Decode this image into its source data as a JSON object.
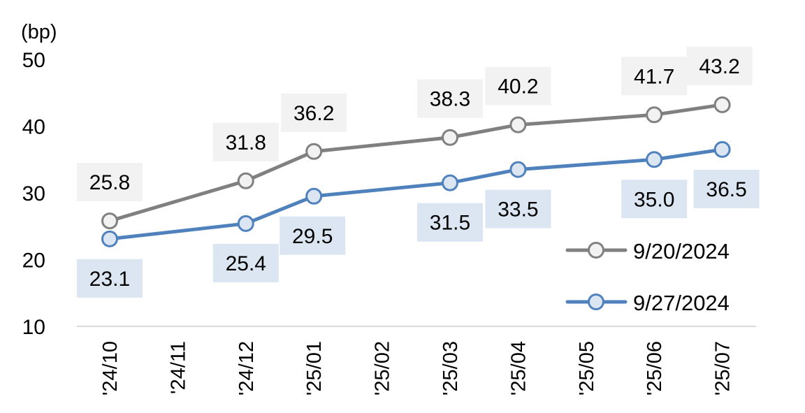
{
  "chart_data": {
    "type": "line",
    "unit_label": "(bp)",
    "categories": [
      "'24/10",
      "'24/11",
      "'24/12",
      "'25/01",
      "'25/02",
      "'25/03",
      "'25/04",
      "'25/05",
      "'25/06",
      "'25/07"
    ],
    "ylim": [
      10,
      50
    ],
    "yticks": [
      10,
      20,
      30,
      40,
      50
    ],
    "grid": false,
    "legend_position": "bottom-right",
    "series": [
      {
        "name": "9/20/2024",
        "color": "#808080",
        "marker_fill": "#f2f2f2",
        "label_bg": "#f2f2f2",
        "values": [
          25.8,
          null,
          31.8,
          36.2,
          null,
          38.3,
          40.2,
          null,
          41.7,
          43.2
        ]
      },
      {
        "name": "9/27/2024",
        "color": "#4f81bd",
        "marker_fill": "#dce6f2",
        "label_bg": "#dce6f2",
        "values": [
          23.1,
          null,
          25.4,
          29.5,
          null,
          31.5,
          33.5,
          null,
          35.0,
          36.5
        ]
      }
    ]
  }
}
